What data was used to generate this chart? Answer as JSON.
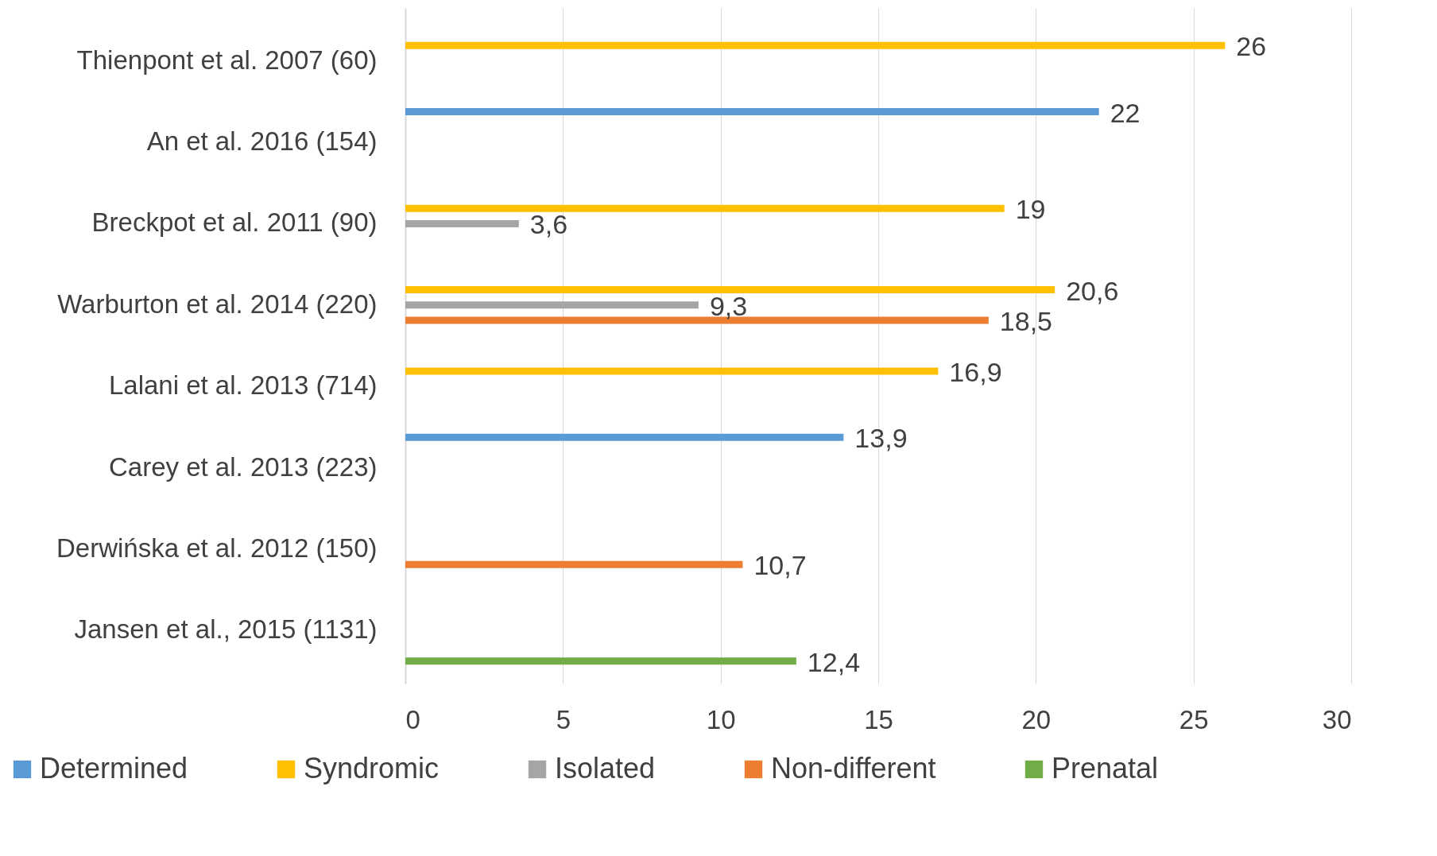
{
  "chart_data": {
    "type": "bar",
    "orientation": "horizontal",
    "categories": [
      "Thienpont et al. 2007 (60)",
      "An et al. 2016 (154)",
      "Breckpot et al. 2011 (90)",
      "Warburton et al. 2014 (220)",
      "Lalani et al. 2013 (714)",
      "Carey et al. 2013 (223)",
      "Derwińska et al. 2012 (150)",
      "Jansen et al., 2015 (1131)"
    ],
    "series": [
      {
        "name": "Determined",
        "color": "#5b9bd5",
        "values": [
          null,
          22,
          null,
          null,
          null,
          13.9,
          null,
          null
        ],
        "value_labels": [
          null,
          "22",
          null,
          null,
          null,
          "13,9",
          null,
          null
        ]
      },
      {
        "name": "Syndromic",
        "color": "#ffc000",
        "values": [
          26,
          null,
          19,
          20.6,
          16.9,
          null,
          null,
          null
        ],
        "value_labels": [
          "26",
          null,
          "19",
          "20,6",
          "16,9",
          null,
          null,
          null
        ]
      },
      {
        "name": "Isolated",
        "color": "#a5a5a5",
        "values": [
          null,
          null,
          3.6,
          9.3,
          null,
          null,
          null,
          null
        ],
        "value_labels": [
          null,
          null,
          "3,6",
          "9,3",
          null,
          null,
          null,
          null
        ]
      },
      {
        "name": "Non-different",
        "color": "#ed7d31",
        "values": [
          null,
          null,
          null,
          18.5,
          null,
          null,
          10.7,
          null
        ],
        "value_labels": [
          null,
          null,
          null,
          "18,5",
          null,
          null,
          "10,7",
          null
        ]
      },
      {
        "name": "Prenatal",
        "color": "#70ad47",
        "values": [
          null,
          null,
          null,
          null,
          null,
          null,
          null,
          12.4
        ],
        "value_labels": [
          null,
          null,
          null,
          null,
          null,
          null,
          null,
          "12,4"
        ]
      }
    ],
    "xlim": [
      0,
      30
    ],
    "xticks": [
      0,
      5,
      10,
      15,
      20,
      25,
      30
    ],
    "grid": "x",
    "legend": "bottom"
  }
}
